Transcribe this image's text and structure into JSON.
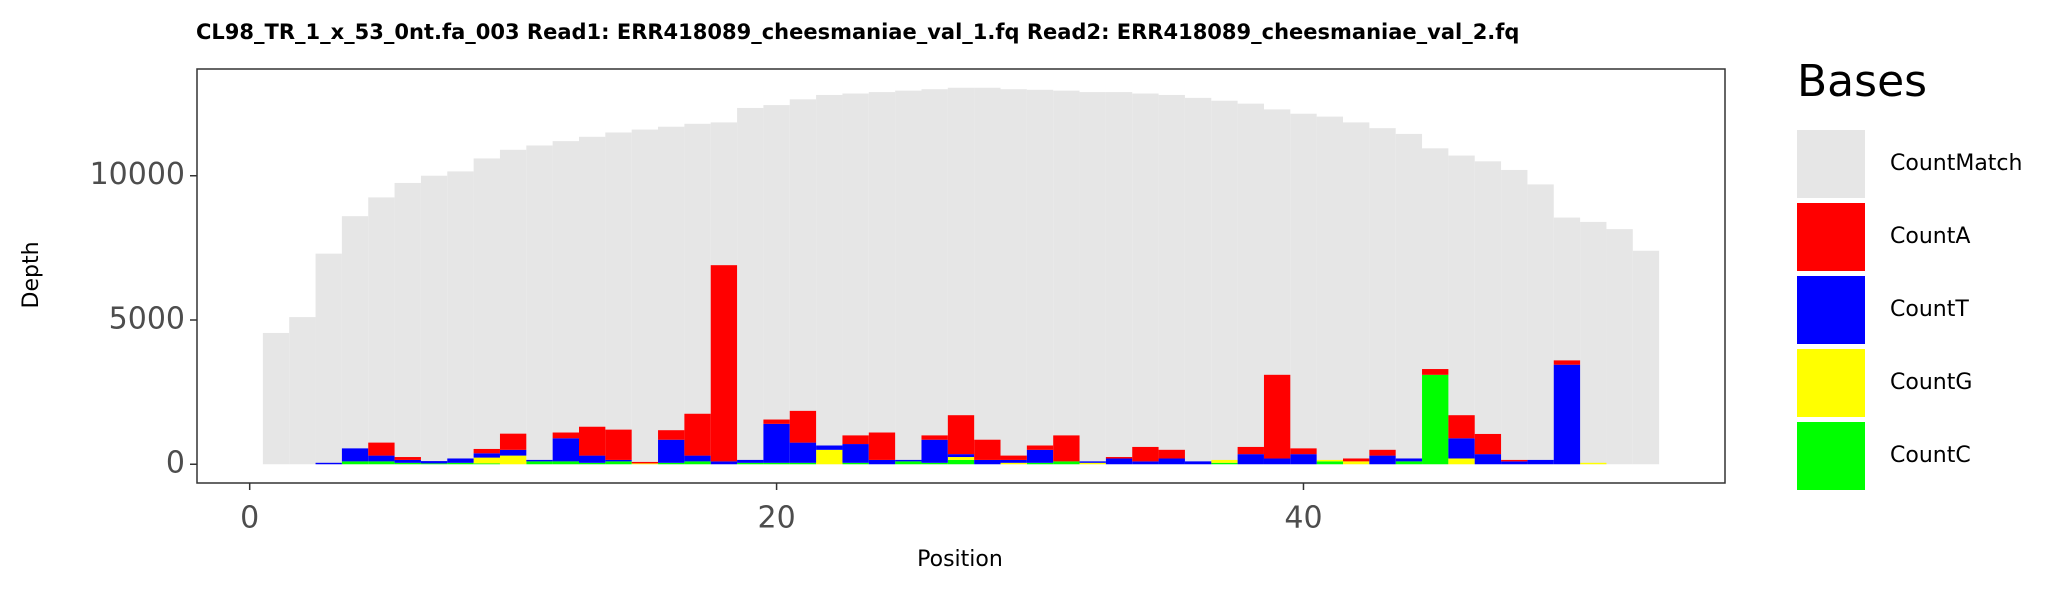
{
  "chart_data": {
    "type": "bar",
    "title": "CL98_TR_1_x_53_0nt.fa_003   Read1: ERR418089_cheesmaniae_val_1.fq   Read2: ERR418089_cheesmaniae_val_2.fq",
    "x_label": "Position",
    "y_label": "Depth",
    "legend_title": "Bases",
    "x": [
      1,
      2,
      3,
      4,
      5,
      6,
      7,
      8,
      9,
      10,
      11,
      12,
      13,
      14,
      15,
      16,
      17,
      18,
      19,
      20,
      21,
      22,
      23,
      24,
      25,
      26,
      27,
      28,
      29,
      30,
      31,
      32,
      33,
      34,
      35,
      36,
      37,
      38,
      39,
      40,
      41,
      42,
      43,
      44,
      45,
      46,
      47,
      48,
      49,
      50,
      51,
      52,
      53
    ],
    "series": [
      {
        "name": "CountMatch",
        "color": "#e6e6e6",
        "values": [
          4550,
          5100,
          7300,
          8600,
          9250,
          9750,
          10000,
          10150,
          10600,
          10900,
          11050,
          11200,
          11350,
          11500,
          11600,
          11700,
          11800,
          11850,
          12350,
          12450,
          12650,
          12800,
          12850,
          12900,
          12950,
          13000,
          13050,
          13050,
          13000,
          12980,
          12950,
          12900,
          12900,
          12850,
          12800,
          12700,
          12600,
          12500,
          12300,
          12150,
          12050,
          11850,
          11650,
          11450,
          10950,
          10700,
          10500,
          10200,
          9700,
          8550,
          8400,
          8150,
          7400
        ]
      },
      {
        "name": "CountA",
        "color": "#ff0000",
        "values": [
          0,
          0,
          0,
          0,
          450,
          100,
          0,
          0,
          150,
          560,
          0,
          200,
          1000,
          1050,
          50,
          330,
          1450,
          6800,
          0,
          150,
          1100,
          0,
          300,
          950,
          0,
          150,
          1350,
          700,
          150,
          150,
          900,
          0,
          50,
          500,
          300,
          0,
          0,
          250,
          2900,
          200,
          0,
          100,
          200,
          0,
          200,
          800,
          700,
          50,
          0,
          150,
          0,
          0,
          0
        ]
      },
      {
        "name": "CountT",
        "color": "#0000ff",
        "values": [
          0,
          0,
          50,
          450,
          200,
          100,
          80,
          150,
          150,
          200,
          50,
          800,
          250,
          50,
          0,
          800,
          200,
          100,
          100,
          1350,
          700,
          150,
          650,
          150,
          50,
          800,
          100,
          150,
          100,
          450,
          0,
          50,
          200,
          100,
          200,
          100,
          0,
          350,
          200,
          350,
          0,
          0,
          300,
          100,
          0,
          700,
          350,
          100,
          150,
          3450,
          0,
          0,
          0
        ]
      },
      {
        "name": "CountG",
        "color": "#ffff00",
        "values": [
          0,
          0,
          0,
          0,
          0,
          0,
          0,
          0,
          200,
          300,
          0,
          0,
          0,
          0,
          30,
          0,
          0,
          0,
          0,
          0,
          0,
          500,
          0,
          0,
          0,
          0,
          100,
          0,
          50,
          0,
          0,
          50,
          0,
          0,
          0,
          0,
          100,
          0,
          0,
          0,
          50,
          100,
          0,
          0,
          0,
          200,
          0,
          0,
          0,
          0,
          50,
          0,
          0
        ]
      },
      {
        "name": "CountC",
        "color": "#00ff00",
        "values": [
          0,
          0,
          0,
          100,
          100,
          50,
          30,
          50,
          30,
          0,
          100,
          100,
          50,
          100,
          0,
          50,
          100,
          0,
          50,
          50,
          50,
          0,
          50,
          0,
          100,
          50,
          150,
          0,
          0,
          50,
          100,
          0,
          0,
          0,
          0,
          0,
          50,
          0,
          0,
          0,
          100,
          0,
          0,
          100,
          3100,
          0,
          0,
          0,
          0,
          0,
          0,
          0,
          0
        ]
      }
    ],
    "xlim": [
      -2,
      56
    ],
    "ylim": [
      -650,
      13700
    ],
    "xticks": [
      0,
      20,
      40
    ],
    "yticks": [
      0,
      5000,
      10000
    ],
    "grid": false
  }
}
